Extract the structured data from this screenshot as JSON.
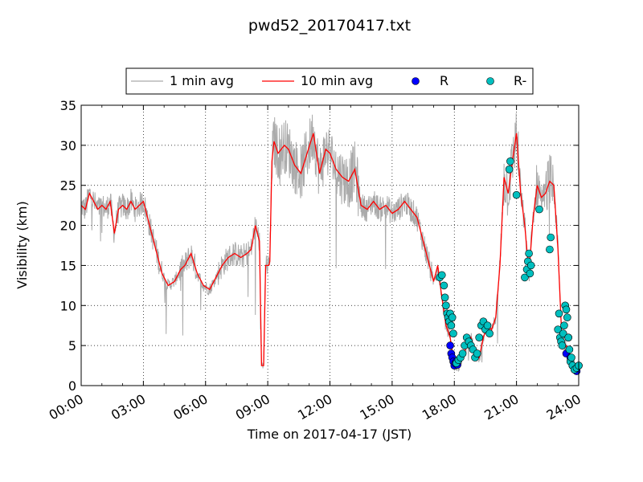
{
  "chart_data": {
    "type": "line",
    "title": "pwd52_20170417.txt",
    "xlabel": "Time on 2017-04-17 (JST)",
    "ylabel": "Visibility (km)",
    "xlim_hours": [
      0,
      24
    ],
    "ylim": [
      0,
      35
    ],
    "x_ticks": [
      0,
      3,
      6,
      9,
      12,
      15,
      18,
      21,
      24
    ],
    "x_tick_labels": [
      "00:00",
      "03:00",
      "06:00",
      "09:00",
      "12:00",
      "15:00",
      "18:00",
      "21:00",
      "24:00"
    ],
    "y_ticks": [
      0,
      5,
      10,
      15,
      20,
      25,
      30,
      35
    ],
    "y_tick_labels": [
      "0",
      "5",
      "10",
      "15",
      "20",
      "25",
      "30",
      "35"
    ],
    "grid": true,
    "legend_position": "top-center",
    "legend": [
      {
        "label": "1 min avg",
        "kind": "line",
        "color": "#aaaaaa"
      },
      {
        "label": "10 min avg",
        "kind": "line",
        "color": "#ff0000"
      },
      {
        "label": "R",
        "kind": "marker",
        "color": "#0000ff"
      },
      {
        "label": "R-",
        "kind": "marker",
        "color": "#00bfbf"
      }
    ],
    "series": [
      {
        "name": "10 min avg",
        "color": "#ff0000",
        "x": [
          0,
          0.2,
          0.4,
          0.6,
          0.8,
          1.0,
          1.2,
          1.4,
          1.6,
          1.8,
          2.0,
          2.2,
          2.4,
          2.6,
          2.8,
          3.0,
          3.3,
          3.6,
          3.9,
          4.2,
          4.5,
          4.8,
          5.0,
          5.3,
          5.6,
          5.9,
          6.2,
          6.5,
          6.8,
          7.1,
          7.4,
          7.7,
          8.0,
          8.2,
          8.4,
          8.6,
          8.7,
          8.75,
          8.8,
          8.9,
          9.0,
          9.05,
          9.1,
          9.2,
          9.3,
          9.5,
          9.8,
          10.0,
          10.3,
          10.6,
          10.9,
          11.2,
          11.5,
          11.8,
          12.0,
          12.3,
          12.6,
          12.9,
          13.2,
          13.5,
          13.8,
          14.1,
          14.4,
          14.7,
          15.0,
          15.3,
          15.6,
          15.9,
          16.2,
          16.5,
          16.8,
          17.0,
          17.2,
          17.4,
          17.6,
          17.8,
          18.0,
          18.2,
          18.4,
          18.6,
          18.8,
          19.0,
          19.2,
          19.4,
          19.6,
          19.8,
          20.0,
          20.2,
          20.4,
          20.6,
          20.8,
          21.0,
          21.2,
          21.4,
          21.6,
          21.8,
          22.0,
          22.2,
          22.4,
          22.6,
          22.8,
          23.0,
          23.2,
          23.4,
          23.6,
          23.8,
          24.0
        ],
        "values": [
          22.5,
          22.0,
          24.0,
          23.0,
          22.0,
          22.5,
          22.0,
          23.0,
          19.0,
          22.0,
          22.5,
          22.0,
          23.0,
          22.0,
          22.5,
          23.0,
          20.0,
          17.0,
          14.0,
          12.5,
          13.0,
          14.5,
          15.0,
          16.5,
          14.0,
          12.5,
          12.0,
          13.5,
          15.0,
          16.0,
          16.5,
          16.0,
          16.5,
          17.0,
          20.0,
          18.0,
          2.5,
          2.5,
          2.5,
          15.0,
          15.0,
          15.0,
          15.5,
          28.0,
          30.5,
          29.0,
          30.0,
          29.5,
          27.5,
          26.5,
          29.0,
          31.5,
          26.5,
          29.5,
          29.0,
          27.0,
          26.0,
          25.5,
          27.0,
          22.5,
          22.0,
          23.0,
          22.0,
          22.5,
          21.5,
          22.0,
          23.0,
          22.0,
          21.0,
          18.0,
          15.0,
          13.0,
          15.0,
          11.0,
          7.5,
          6.0,
          2.5,
          2.5,
          3.5,
          5.0,
          6.0,
          4.0,
          3.5,
          6.0,
          7.5,
          7.0,
          8.5,
          15.0,
          26.0,
          24.0,
          28.0,
          31.5,
          24.0,
          20.0,
          14.0,
          21.0,
          25.0,
          23.5,
          24.0,
          25.5,
          25.0,
          17.0,
          5.0,
          5.0,
          3.0,
          2.0,
          2.0
        ]
      },
      {
        "name": "R",
        "color": "#0000ff",
        "x": [
          17.8,
          17.85,
          17.9,
          17.95,
          18.0,
          18.05,
          18.1,
          18.15,
          23.4,
          23.5,
          23.6,
          23.7,
          23.8,
          23.9,
          24.0
        ],
        "values": [
          5.0,
          4.0,
          3.5,
          3.0,
          2.5,
          2.8,
          3.0,
          2.6,
          4.0,
          6.0,
          3.5,
          2.5,
          2.0,
          1.8,
          2.5
        ]
      },
      {
        "name": "R-",
        "color": "#00bfbf",
        "x": [
          17.3,
          17.4,
          17.5,
          17.55,
          17.6,
          17.65,
          17.7,
          17.75,
          17.8,
          17.85,
          17.9,
          17.95,
          18.1,
          18.2,
          18.3,
          18.4,
          18.5,
          18.6,
          18.7,
          18.8,
          18.9,
          19.0,
          19.1,
          19.2,
          19.3,
          19.4,
          19.5,
          19.6,
          19.7,
          20.65,
          20.7,
          21.0,
          21.4,
          21.5,
          21.55,
          21.6,
          21.65,
          21.7,
          22.1,
          22.6,
          22.65,
          23.0,
          23.05,
          23.1,
          23.15,
          23.2,
          23.25,
          23.3,
          23.35,
          23.4,
          23.45,
          23.5,
          23.55,
          23.6,
          23.65,
          23.7,
          23.8,
          23.9,
          24.0
        ],
        "values": [
          13.5,
          13.8,
          12.5,
          11.0,
          10.0,
          9.0,
          8.5,
          8.0,
          9.0,
          7.5,
          8.5,
          6.5,
          2.8,
          3.2,
          3.5,
          4.0,
          5.0,
          6.0,
          5.5,
          5.0,
          4.5,
          3.5,
          4.0,
          6.0,
          7.5,
          8.0,
          7.0,
          7.5,
          6.5,
          27.0,
          28.0,
          23.8,
          13.5,
          14.5,
          15.5,
          16.5,
          14.0,
          15.0,
          22.0,
          17.0,
          18.5,
          7.0,
          9.0,
          6.0,
          5.5,
          5.0,
          6.5,
          7.5,
          10.0,
          9.5,
          8.5,
          6.0,
          4.5,
          3.0,
          3.5,
          2.5,
          2.0,
          2.2,
          2.5
        ]
      }
    ]
  }
}
